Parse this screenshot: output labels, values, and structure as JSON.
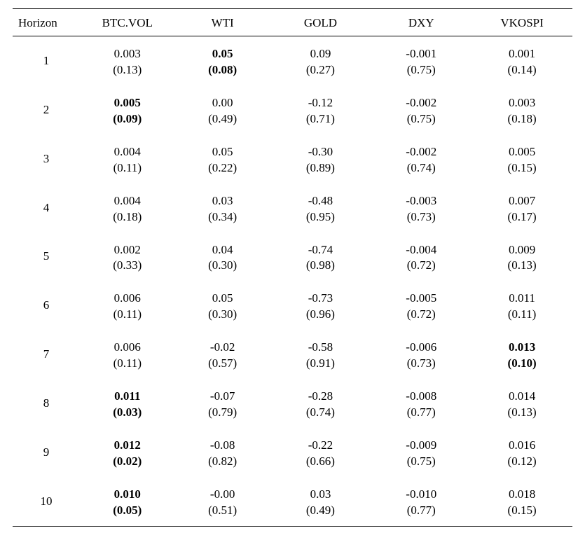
{
  "table": {
    "type": "table",
    "font_family": "Times New Roman",
    "header_fontsize": 17,
    "cell_fontsize": 17,
    "text_color": "#000000",
    "background_color": "#ffffff",
    "border_color": "#000000",
    "border_width": 1,
    "column_widths_pct": [
      12,
      17,
      17,
      18,
      18,
      18
    ],
    "column_align": [
      "left",
      "center",
      "center",
      "center",
      "center",
      "center"
    ],
    "columns": [
      "Horizon",
      "BTC.VOL",
      "WTI",
      "GOLD",
      "DXY",
      "VKOSPI"
    ],
    "rows": [
      {
        "horizon": "1",
        "cells": [
          {
            "coef": "0.003",
            "paren": "(0.13)",
            "bold": false
          },
          {
            "coef": "0.05",
            "paren": "(0.08)",
            "bold": true
          },
          {
            "coef": "0.09",
            "paren": "(0.27)",
            "bold": false
          },
          {
            "coef": "-0.001",
            "paren": "(0.75)",
            "bold": false
          },
          {
            "coef": "0.001",
            "paren": "(0.14)",
            "bold": false
          }
        ]
      },
      {
        "horizon": "2",
        "cells": [
          {
            "coef": "0.005",
            "paren": "(0.09)",
            "bold": true
          },
          {
            "coef": "0.00",
            "paren": "(0.49)",
            "bold": false
          },
          {
            "coef": "-0.12",
            "paren": "(0.71)",
            "bold": false
          },
          {
            "coef": "-0.002",
            "paren": "(0.75)",
            "bold": false
          },
          {
            "coef": "0.003",
            "paren": "(0.18)",
            "bold": false
          }
        ]
      },
      {
        "horizon": "3",
        "cells": [
          {
            "coef": "0.004",
            "paren": "(0.11)",
            "bold": false
          },
          {
            "coef": "0.05",
            "paren": "(0.22)",
            "bold": false
          },
          {
            "coef": "-0.30",
            "paren": "(0.89)",
            "bold": false
          },
          {
            "coef": "-0.002",
            "paren": "(0.74)",
            "bold": false
          },
          {
            "coef": "0.005",
            "paren": "(0.15)",
            "bold": false
          }
        ]
      },
      {
        "horizon": "4",
        "cells": [
          {
            "coef": "0.004",
            "paren": "(0.18)",
            "bold": false
          },
          {
            "coef": "0.03",
            "paren": "(0.34)",
            "bold": false
          },
          {
            "coef": "-0.48",
            "paren": "(0.95)",
            "bold": false
          },
          {
            "coef": "-0.003",
            "paren": "(0.73)",
            "bold": false
          },
          {
            "coef": "0.007",
            "paren": "(0.17)",
            "bold": false
          }
        ]
      },
      {
        "horizon": "5",
        "cells": [
          {
            "coef": "0.002",
            "paren": "(0.33)",
            "bold": false
          },
          {
            "coef": "0.04",
            "paren": "(0.30)",
            "bold": false
          },
          {
            "coef": "-0.74",
            "paren": "(0.98)",
            "bold": false
          },
          {
            "coef": "-0.004",
            "paren": "(0.72)",
            "bold": false
          },
          {
            "coef": "0.009",
            "paren": "(0.13)",
            "bold": false
          }
        ]
      },
      {
        "horizon": "6",
        "cells": [
          {
            "coef": "0.006",
            "paren": "(0.11)",
            "bold": false
          },
          {
            "coef": "0.05",
            "paren": "(0.30)",
            "bold": false
          },
          {
            "coef": "-0.73",
            "paren": "(0.96)",
            "bold": false
          },
          {
            "coef": "-0.005",
            "paren": "(0.72)",
            "bold": false
          },
          {
            "coef": "0.011",
            "paren": "(0.11)",
            "bold": false
          }
        ]
      },
      {
        "horizon": "7",
        "cells": [
          {
            "coef": "0.006",
            "paren": "(0.11)",
            "bold": false
          },
          {
            "coef": "-0.02",
            "paren": "(0.57)",
            "bold": false
          },
          {
            "coef": "-0.58",
            "paren": "(0.91)",
            "bold": false
          },
          {
            "coef": "-0.006",
            "paren": "(0.73)",
            "bold": false
          },
          {
            "coef": "0.013",
            "paren": "(0.10)",
            "bold": true
          }
        ]
      },
      {
        "horizon": "8",
        "cells": [
          {
            "coef": "0.011",
            "paren": "(0.03)",
            "bold": true
          },
          {
            "coef": "-0.07",
            "paren": "(0.79)",
            "bold": false
          },
          {
            "coef": "-0.28",
            "paren": "(0.74)",
            "bold": false
          },
          {
            "coef": "-0.008",
            "paren": "(0.77)",
            "bold": false
          },
          {
            "coef": "0.014",
            "paren": "(0.13)",
            "bold": false
          }
        ]
      },
      {
        "horizon": "9",
        "cells": [
          {
            "coef": "0.012",
            "paren": "(0.02)",
            "bold": true
          },
          {
            "coef": "-0.08",
            "paren": "(0.82)",
            "bold": false
          },
          {
            "coef": "-0.22",
            "paren": "(0.66)",
            "bold": false
          },
          {
            "coef": "-0.009",
            "paren": "(0.75)",
            "bold": false
          },
          {
            "coef": "0.016",
            "paren": "(0.12)",
            "bold": false
          }
        ]
      },
      {
        "horizon": "10",
        "cells": [
          {
            "coef": "0.010",
            "paren": "(0.05)",
            "bold": true
          },
          {
            "coef": "-0.00",
            "paren": "(0.51)",
            "bold": false
          },
          {
            "coef": "0.03",
            "paren": "(0.49)",
            "bold": false
          },
          {
            "coef": "-0.010",
            "paren": "(0.77)",
            "bold": false
          },
          {
            "coef": "0.018",
            "paren": "(0.15)",
            "bold": false
          }
        ]
      }
    ]
  }
}
